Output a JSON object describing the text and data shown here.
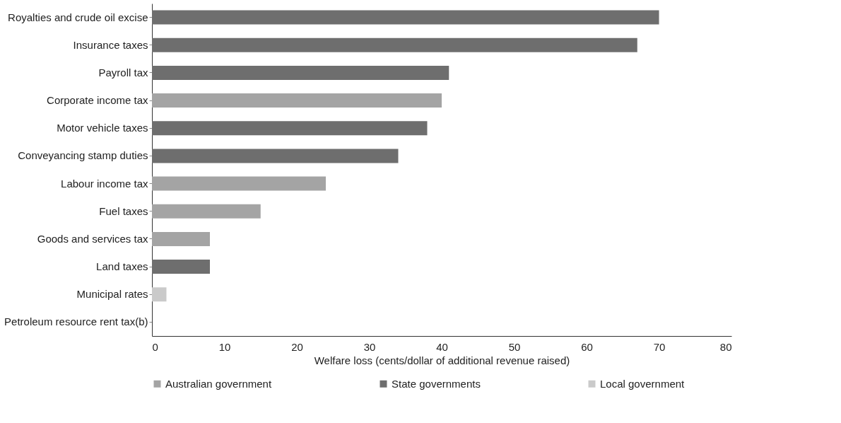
{
  "chart_data": {
    "type": "bar",
    "orientation": "horizontal",
    "xlabel": "Welfare loss (cents/dollar of additional revenue raised)",
    "categories": [
      "Royalties and crude oil excise",
      "Insurance taxes",
      "Payroll tax",
      "Corporate income tax",
      "Motor vehicle taxes",
      "Conveyancing stamp duties",
      "Labour income tax",
      "Fuel taxes",
      "Goods and services tax",
      "Land taxes",
      "Municipal rates",
      "Petroleum resource rent tax(b)"
    ],
    "series": [
      {
        "name": "Australian government",
        "color": "#a4a4a4",
        "values": [
          null,
          null,
          null,
          40,
          null,
          null,
          24,
          15,
          8,
          null,
          null,
          0
        ]
      },
      {
        "name": "State governments",
        "color": "#6e6e6e",
        "values": [
          70,
          67,
          41,
          null,
          38,
          34,
          null,
          null,
          null,
          8,
          null,
          null
        ]
      },
      {
        "name": "Local government",
        "color": "#cacaca",
        "values": [
          null,
          null,
          null,
          null,
          null,
          null,
          null,
          null,
          null,
          null,
          2,
          null
        ]
      }
    ],
    "xlim": [
      0,
      80
    ],
    "xticks": [
      0,
      10,
      20,
      30,
      40,
      50,
      60,
      70,
      80
    ],
    "grid": false,
    "legend": "bottom"
  }
}
